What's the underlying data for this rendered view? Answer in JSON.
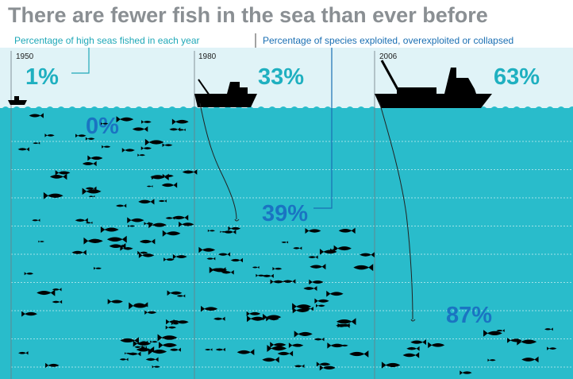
{
  "header": {
    "title": "There are fewer fish in the sea than ever before"
  },
  "legend": [
    "Percentage of high seas fished in each year",
    "Percentage of species exploited, overexploited or collapsed"
  ],
  "panels": [
    {
      "year": "1950",
      "seas_fished": "1%",
      "species_exploited": "0%"
    },
    {
      "year": "1980",
      "seas_fished": "33%",
      "species_exploited": "39%"
    },
    {
      "year": "2006",
      "seas_fished": "63%",
      "species_exploited": "87%"
    }
  ]
}
